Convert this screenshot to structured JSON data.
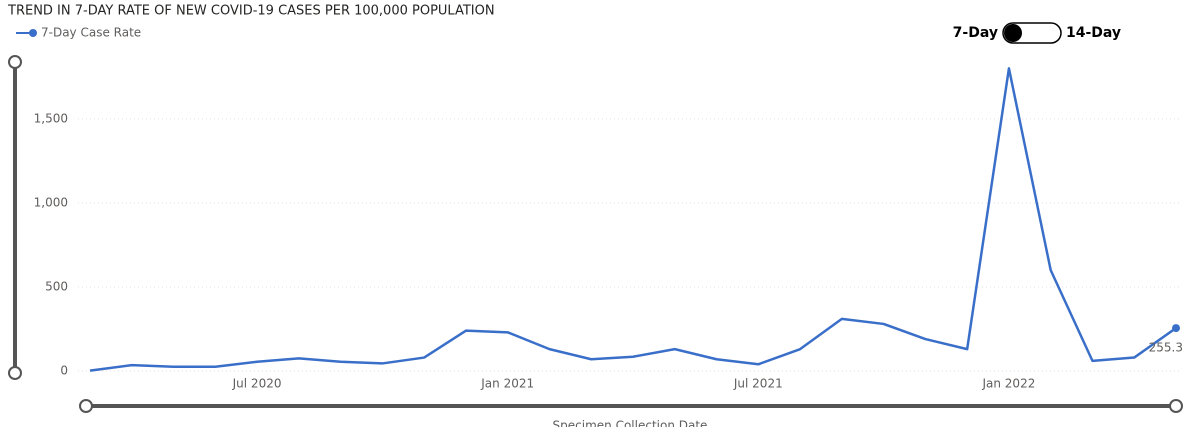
{
  "chart_data": {
    "type": "line",
    "title": "TREND IN 7-DAY RATE OF NEW COVID-19 CASES PER 100,000 POPULATION",
    "x_label": "Specimen Collection Date",
    "toggle": {
      "left": "7-Day",
      "right": "14-Day"
    },
    "x": [
      "2020-03",
      "2020-04",
      "2020-05",
      "2020-06",
      "2020-07",
      "2020-08",
      "2020-09",
      "2020-10",
      "2020-11",
      "2020-12",
      "2021-01",
      "2021-02",
      "2021-03",
      "2021-04",
      "2021-05",
      "2021-06",
      "2021-07",
      "2021-08",
      "2021-09",
      "2021-10",
      "2021-11",
      "2021-12",
      "2022-01",
      "2022-02",
      "2022-03",
      "2022-04",
      "2022-05"
    ],
    "series": [
      {
        "name": "7-Day Case Rate",
        "color": "#3a6fc9",
        "values": [
          2,
          35,
          25,
          25,
          55,
          75,
          55,
          45,
          80,
          240,
          230,
          130,
          70,
          85,
          130,
          70,
          40,
          130,
          310,
          280,
          190,
          130,
          1800,
          600,
          60,
          80,
          255.3
        ],
        "value_labels": [
          null,
          null,
          null,
          null,
          null,
          null,
          null,
          null,
          null,
          null,
          null,
          null,
          null,
          null,
          null,
          null,
          null,
          null,
          null,
          null,
          null,
          null,
          null,
          null,
          null,
          null,
          "255.3"
        ]
      }
    ],
    "xlim": [
      "2020-03",
      "2022-05"
    ],
    "xticks": [
      {
        "value": "2020-07",
        "label": "Jul 2020"
      },
      {
        "value": "2021-01",
        "label": "Jan 2021"
      },
      {
        "value": "2021-07",
        "label": "Jul 2021"
      },
      {
        "value": "2022-01",
        "label": "Jan 2022"
      }
    ],
    "ylim": [
      0,
      1850
    ],
    "yticks": [
      0,
      {
        "value": 500,
        "label": "500"
      },
      {
        "value": 1000,
        "label": "1,000"
      },
      {
        "value": 1500,
        "label": "1,500"
      }
    ],
    "grid": true
  }
}
